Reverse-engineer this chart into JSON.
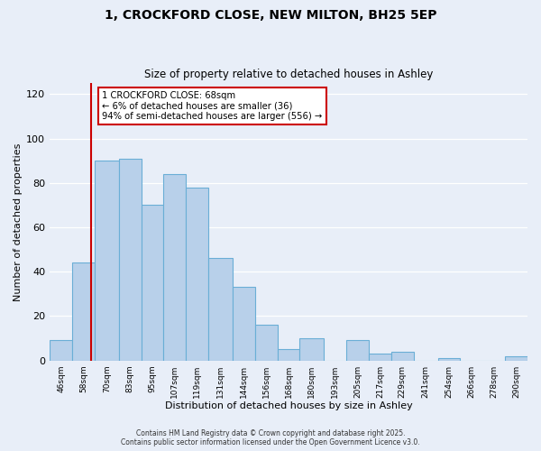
{
  "title": "1, CROCKFORD CLOSE, NEW MILTON, BH25 5EP",
  "subtitle": "Size of property relative to detached houses in Ashley",
  "xlabel": "Distribution of detached houses by size in Ashley",
  "ylabel": "Number of detached properties",
  "bar_labels": [
    "46sqm",
    "58sqm",
    "70sqm",
    "83sqm",
    "95sqm",
    "107sqm",
    "119sqm",
    "131sqm",
    "144sqm",
    "156sqm",
    "168sqm",
    "180sqm",
    "193sqm",
    "205sqm",
    "217sqm",
    "229sqm",
    "241sqm",
    "254sqm",
    "266sqm",
    "278sqm",
    "290sqm"
  ],
  "bar_values": [
    9,
    44,
    90,
    91,
    70,
    84,
    78,
    46,
    33,
    16,
    5,
    10,
    0,
    9,
    3,
    4,
    0,
    1,
    0,
    0,
    2
  ],
  "bar_color": "#b8d0ea",
  "bar_edge_color": "#6aaed6",
  "ylim": [
    0,
    125
  ],
  "yticks": [
    0,
    20,
    40,
    60,
    80,
    100,
    120
  ],
  "vline_x": 68,
  "vline_color": "#cc0000",
  "annotation_title": "1 CROCKFORD CLOSE: 68sqm",
  "annotation_line1": "← 6% of detached houses are smaller (36)",
  "annotation_line2": "94% of semi-detached houses are larger (556) →",
  "annotation_box_color": "#ffffff",
  "annotation_box_edge": "#cc0000",
  "footer1": "Contains HM Land Registry data © Crown copyright and database right 2025.",
  "footer2": "Contains public sector information licensed under the Open Government Licence v3.0.",
  "background_color": "#e8eef8",
  "grid_color": "#ffffff"
}
